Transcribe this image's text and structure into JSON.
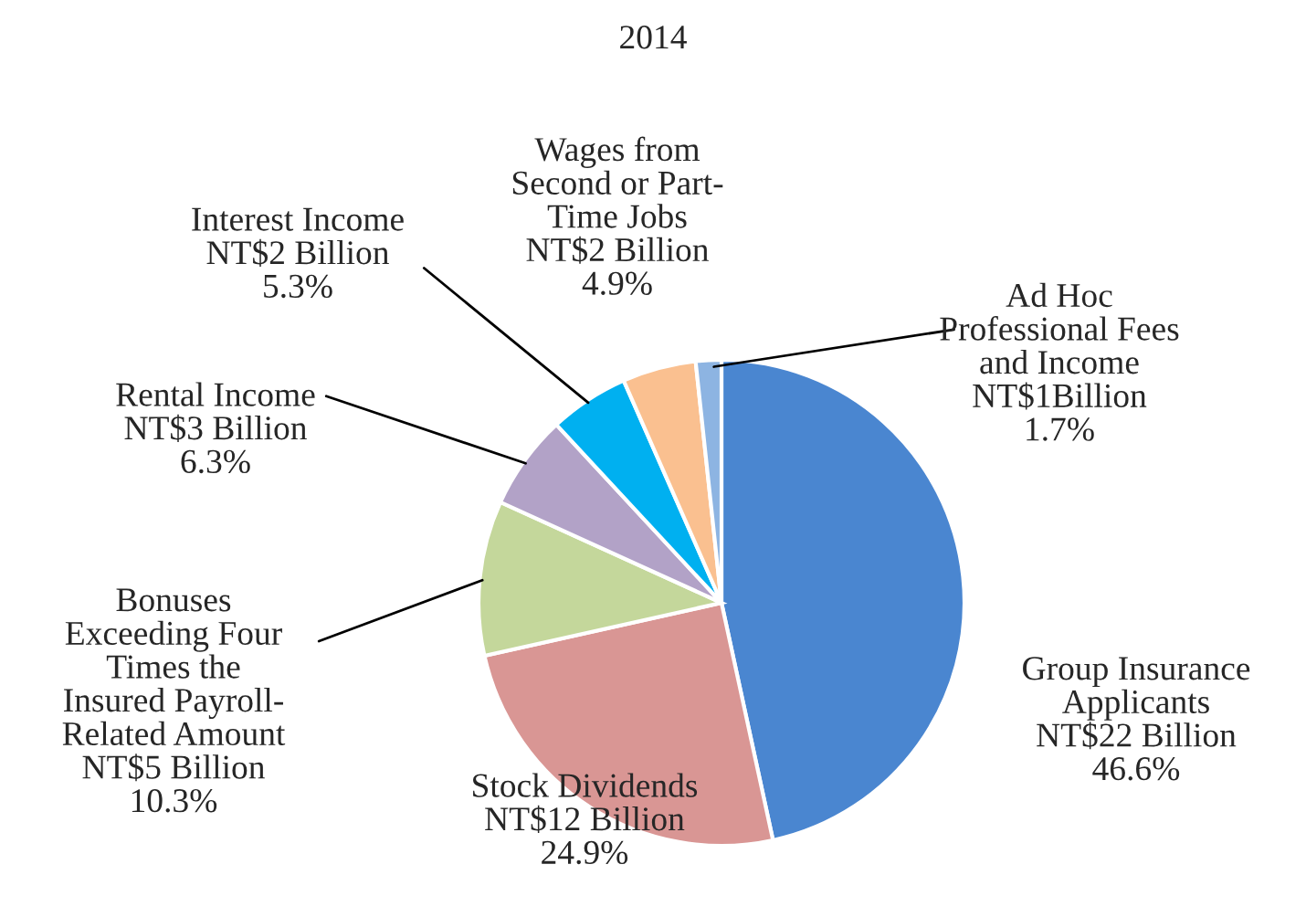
{
  "chart_data": {
    "type": "pie",
    "subtitle": "2014",
    "categories": [
      "Group Insurance\nApplicants\nNT$22 Billion",
      "Stock Dividends\nNT$12 Billion",
      "Bonuses\nExceeding Four\nTimes the\nInsured Payroll-\nRelated Amount\nNT$5 Billion",
      "Rental Income\nNT$3 Billion",
      "Interest Income\nNT$2 Billion",
      "Wages from\nSecond or Part-\nTime Jobs\nNT$2 Billion",
      "Ad Hoc\nProfessional Fees\nand Income\nNT$1Billion"
    ],
    "values": [
      46.6,
      24.9,
      10.3,
      6.3,
      5.3,
      4.9,
      1.7
    ],
    "colors": [
      "#4a86d0",
      "#d99694",
      "#c4d79b",
      "#b2a2c7",
      "#00b0f0",
      "#fac090",
      "#8db4e2"
    ],
    "value_labels": [
      "46.6%",
      "24.9%",
      "10.3%",
      "6.3%",
      "5.3%",
      "4.9%",
      "1.7%"
    ]
  }
}
